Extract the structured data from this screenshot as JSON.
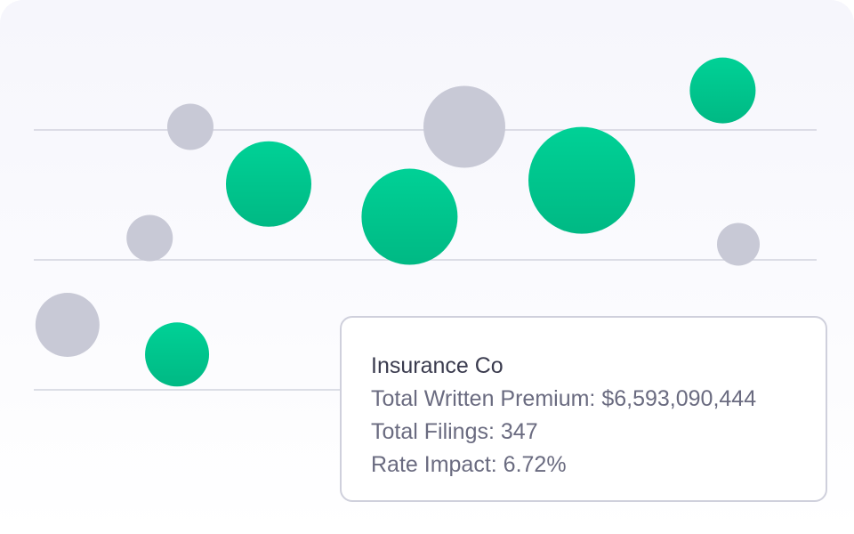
{
  "chart_data": {
    "type": "scatter",
    "title": "",
    "xlabel": "",
    "ylabel": "",
    "grid": true,
    "xlim": [
      0,
      100
    ],
    "ylim": [
      0,
      100
    ],
    "gridlines": [
      25,
      50,
      75
    ],
    "series": [
      {
        "color": "#c8c9d6",
        "points": [
          {
            "x": 20,
            "y": 75.6,
            "size": 26
          },
          {
            "x": 55,
            "y": 75.6,
            "size": 46
          },
          {
            "x": 14.8,
            "y": 54.2,
            "size": 26
          },
          {
            "x": 90,
            "y": 53,
            "size": 24
          },
          {
            "x": 4.3,
            "y": 37.5,
            "size": 36
          }
        ]
      },
      {
        "color": "#00c98f",
        "points": [
          {
            "x": 88,
            "y": 82.6,
            "size": 37
          },
          {
            "x": 30,
            "y": 64.6,
            "size": 48
          },
          {
            "x": 70,
            "y": 65.3,
            "size": 60
          },
          {
            "x": 48,
            "y": 58.3,
            "size": 54
          },
          {
            "x": 18.3,
            "y": 31.8,
            "size": 36
          }
        ]
      }
    ]
  },
  "tooltip": {
    "title": "Insurance Co",
    "line1": "Total Written Premium: $6,593,090,444",
    "line2": "Total Filings: 347",
    "line3": "Rate Impact: 6.72%"
  }
}
